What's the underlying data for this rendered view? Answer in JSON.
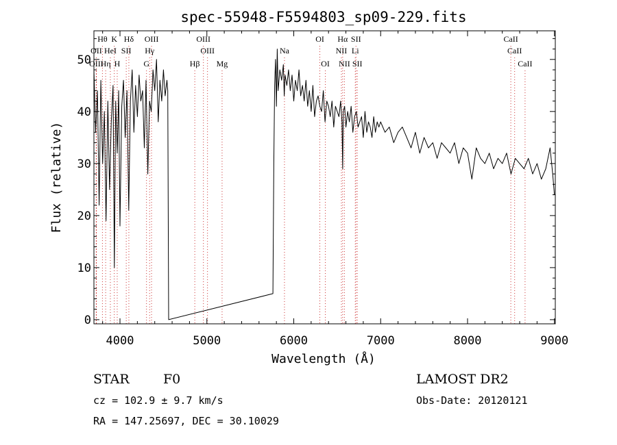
{
  "chart_data": {
    "type": "line",
    "title": "spec-55948-F5594803_sp09-229.fits",
    "xlabel": "Wavelength (Å)",
    "ylabel": "Flux (relative)",
    "xlim": [
      3700,
      9010
    ],
    "ylim": [
      -0.8,
      55.5
    ],
    "x_ticks": [
      4000,
      5000,
      6000,
      7000,
      8000,
      9000
    ],
    "y_ticks": [
      0,
      10,
      20,
      30,
      40,
      50
    ],
    "grid": false,
    "legend": "none",
    "colors": {
      "spectrum": "#000000",
      "marker_line": "#cc3333",
      "axes": "#000000"
    },
    "series": [
      {
        "x": [
          3700,
          3720,
          3740,
          3760,
          3780,
          3800,
          3820,
          3840,
          3860,
          3880,
          3900,
          3920,
          3935,
          3950,
          3968,
          3985,
          4000,
          4020,
          4040,
          4060,
          4080,
          4101,
          4120,
          4140,
          4160,
          4180,
          4200,
          4220,
          4240,
          4260,
          4280,
          4300,
          4320,
          4340,
          4360,
          4380,
          4400,
          4420,
          4440,
          4460,
          4480,
          4500,
          4520,
          4540,
          4550,
          4560,
          5760,
          5770,
          5780,
          5790,
          5800,
          5810,
          5820,
          5840,
          5860,
          5880,
          5890,
          5900,
          5920,
          5940,
          5960,
          5980,
          6000,
          6020,
          6040,
          6060,
          6080,
          6100,
          6120,
          6140,
          6160,
          6180,
          6200,
          6220,
          6240,
          6260,
          6280,
          6300,
          6320,
          6340,
          6360,
          6380,
          6400,
          6420,
          6440,
          6460,
          6480,
          6500,
          6520,
          6540,
          6555,
          6563,
          6570,
          6585,
          6600,
          6620,
          6640,
          6660,
          6680,
          6700,
          6720,
          6740,
          6760,
          6780,
          6800,
          6820,
          6840,
          6860,
          6880,
          6900,
          6920,
          6940,
          6960,
          6980,
          7000,
          7050,
          7100,
          7150,
          7200,
          7250,
          7300,
          7350,
          7400,
          7450,
          7500,
          7550,
          7600,
          7650,
          7700,
          7750,
          7800,
          7850,
          7900,
          7950,
          8000,
          8050,
          8100,
          8150,
          8200,
          8250,
          8300,
          8350,
          8400,
          8450,
          8500,
          8550,
          8600,
          8650,
          8700,
          8750,
          8800,
          8850,
          8900,
          8950,
          8980,
          9000
        ],
        "y": [
          48,
          36,
          44,
          22,
          46,
          30,
          40,
          19,
          42,
          25,
          38,
          45,
          10,
          42,
          32,
          44,
          18,
          41,
          46,
          35,
          44,
          21,
          42,
          48,
          36,
          45,
          39,
          47,
          42,
          44,
          33,
          46,
          28,
          42,
          40,
          48,
          44,
          50,
          38,
          46,
          42,
          48,
          43,
          46,
          44,
          0,
          5,
          30,
          45,
          50,
          41,
          52,
          44,
          48,
          46,
          49,
          43,
          47,
          45,
          48,
          44,
          47,
          42,
          46,
          44,
          48,
          43,
          45,
          42,
          46,
          41,
          44,
          40,
          45,
          39,
          42,
          43,
          41,
          40,
          44,
          38,
          42,
          41,
          39,
          42,
          37,
          41,
          40,
          39,
          42,
          38,
          29,
          40,
          41,
          37,
          40,
          38,
          41,
          36,
          39,
          40,
          37,
          38,
          39,
          35,
          40,
          36,
          38,
          37,
          35,
          39,
          36,
          38,
          37,
          38,
          36,
          37,
          34,
          36,
          37,
          35,
          33,
          36,
          32,
          35,
          33,
          34,
          31,
          34,
          33,
          32,
          34,
          30,
          33,
          32,
          27,
          33,
          31,
          30,
          32,
          29,
          31,
          30,
          32,
          28,
          31,
          30,
          29,
          31,
          28,
          30,
          27,
          29,
          33,
          28,
          24
        ]
      }
    ],
    "line_markers": [
      {
        "label": "Hθ",
        "row": 0,
        "x": 3798
      },
      {
        "label": "K",
        "row": 0,
        "x": 3934
      },
      {
        "label": "Hδ",
        "row": 0,
        "x": 4102
      },
      {
        "label": "OIII",
        "row": 0,
        "x": 4363
      },
      {
        "label": "OIII",
        "row": 0,
        "x": 4960
      },
      {
        "label": "OI",
        "row": 0,
        "x": 6300
      },
      {
        "label": "Hα",
        "row": 0,
        "x": 6563
      },
      {
        "label": "SII",
        "row": 0,
        "x": 6716
      },
      {
        "label": "CaII",
        "row": 0,
        "x": 8498
      },
      {
        "label": "OII",
        "row": 1,
        "x": 3727
      },
      {
        "label": "HeI",
        "row": 1,
        "x": 3889
      },
      {
        "label": "SII",
        "row": 1,
        "x": 4072
      },
      {
        "label": "Hγ",
        "row": 1,
        "x": 4341
      },
      {
        "label": "OIII",
        "row": 1,
        "x": 5007
      },
      {
        "label": "Na",
        "row": 1,
        "x": 5893
      },
      {
        "label": "NII",
        "row": 1,
        "x": 6548
      },
      {
        "label": "Li",
        "row": 1,
        "x": 6708
      },
      {
        "label": "CaII",
        "row": 1,
        "x": 8542
      },
      {
        "label": "OIII",
        "row": 2,
        "x": 3727
      },
      {
        "label": "Hη",
        "row": 2,
        "x": 3835
      },
      {
        "label": "H",
        "row": 2,
        "x": 3968
      },
      {
        "label": "G",
        "row": 2,
        "x": 4305
      },
      {
        "label": "Hβ",
        "row": 2,
        "x": 4861
      },
      {
        "label": "Mg",
        "row": 2,
        "x": 5175
      },
      {
        "label": "OI",
        "row": 2,
        "x": 6363
      },
      {
        "label": "NII",
        "row": 2,
        "x": 6583
      },
      {
        "label": "SII",
        "row": 2,
        "x": 6731
      },
      {
        "label": "CaII",
        "row": 2,
        "x": 8662
      }
    ]
  },
  "footer": {
    "object_type": "STAR",
    "subclass": "F0",
    "survey": "LAMOST DR2",
    "redshift": "cz =  102.9 ± 9.7 km/s",
    "obs_date": "Obs-Date: 20120121",
    "coords": "RA = 147.25697, DEC =  30.10029"
  }
}
